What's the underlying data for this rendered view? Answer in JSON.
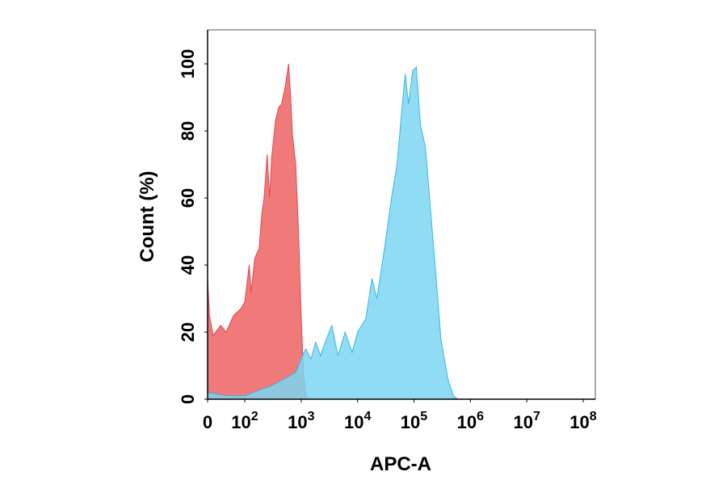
{
  "chart_data": {
    "type": "area",
    "xlabel": "APC-A",
    "ylabel": "Count  (%)",
    "x_scale": "biexponential",
    "xlim": [
      0,
      100000000
    ],
    "ylim": [
      0,
      100
    ],
    "x_ticks": [
      {
        "value": 0,
        "base": "0",
        "exp": ""
      },
      {
        "value": 100,
        "base": "10",
        "exp": "2"
      },
      {
        "value": 1000,
        "base": "10",
        "exp": "3"
      },
      {
        "value": 10000,
        "base": "10",
        "exp": "4"
      },
      {
        "value": 100000,
        "base": "10",
        "exp": "5"
      },
      {
        "value": 1000000,
        "base": "10",
        "exp": "6"
      },
      {
        "value": 10000000,
        "base": "10",
        "exp": "7"
      },
      {
        "value": 100000000,
        "base": "10",
        "exp": "8"
      }
    ],
    "y_ticks": [
      0,
      20,
      40,
      60,
      80,
      100
    ],
    "grid": false,
    "series": [
      {
        "color": "#f07a7a",
        "stroke": "#e0484f",
        "points": [
          [
            0,
            36
          ],
          [
            5,
            25
          ],
          [
            15,
            19
          ],
          [
            35,
            22
          ],
          [
            50,
            20
          ],
          [
            70,
            25
          ],
          [
            90,
            27
          ],
          [
            100,
            29
          ],
          [
            120,
            40
          ],
          [
            130,
            32
          ],
          [
            150,
            42
          ],
          [
            180,
            45
          ],
          [
            200,
            55
          ],
          [
            220,
            60
          ],
          [
            250,
            73
          ],
          [
            275,
            60
          ],
          [
            300,
            72
          ],
          [
            350,
            83
          ],
          [
            400,
            87
          ],
          [
            450,
            88
          ],
          [
            520,
            93
          ],
          [
            600,
            100
          ],
          [
            650,
            90
          ],
          [
            700,
            79
          ],
          [
            800,
            70
          ],
          [
            900,
            50
          ],
          [
            1000,
            25
          ],
          [
            1100,
            8
          ],
          [
            1200,
            2
          ],
          [
            1300,
            0
          ]
        ]
      },
      {
        "color": "#7dd6f2",
        "stroke": "#3db4e3",
        "points": [
          [
            0,
            2
          ],
          [
            50,
            1
          ],
          [
            100,
            1
          ],
          [
            200,
            3
          ],
          [
            300,
            4
          ],
          [
            500,
            6
          ],
          [
            800,
            8
          ],
          [
            1000,
            12
          ],
          [
            1200,
            15
          ],
          [
            1500,
            12
          ],
          [
            1800,
            17
          ],
          [
            2200,
            13
          ],
          [
            2800,
            18
          ],
          [
            3500,
            22
          ],
          [
            4500,
            13
          ],
          [
            6000,
            20
          ],
          [
            8000,
            14
          ],
          [
            10000,
            20
          ],
          [
            14000,
            24
          ],
          [
            18000,
            36
          ],
          [
            22000,
            30
          ],
          [
            30000,
            45
          ],
          [
            40000,
            60
          ],
          [
            50000,
            70
          ],
          [
            60000,
            85
          ],
          [
            70000,
            97
          ],
          [
            80000,
            88
          ],
          [
            95000,
            98
          ],
          [
            110000,
            99
          ],
          [
            130000,
            82
          ],
          [
            160000,
            75
          ],
          [
            200000,
            55
          ],
          [
            250000,
            35
          ],
          [
            300000,
            18
          ],
          [
            400000,
            6
          ],
          [
            500000,
            1
          ],
          [
            600000,
            0
          ]
        ]
      }
    ]
  }
}
